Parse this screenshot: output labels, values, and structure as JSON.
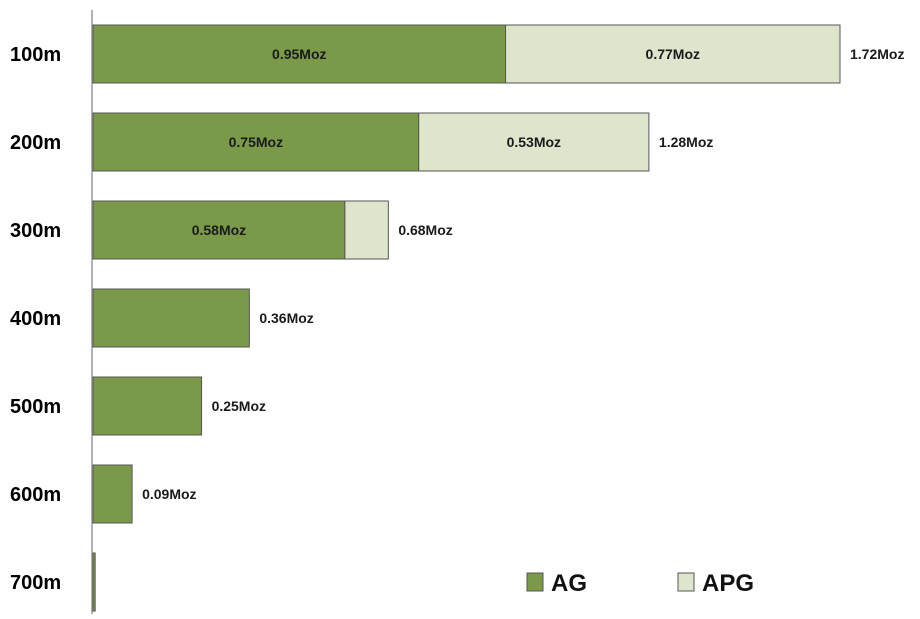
{
  "chart_data": {
    "type": "bar",
    "orientation": "horizontal",
    "stacked": true,
    "categories": [
      "100m",
      "200m",
      "300m",
      "400m",
      "500m",
      "600m",
      "700m"
    ],
    "series": [
      {
        "name": "AG",
        "color": "#7a9a4a",
        "values": [
          0.95,
          0.75,
          0.58,
          0.36,
          0.25,
          0.09,
          0.005
        ],
        "labels": [
          "0.95Moz",
          "0.75Moz",
          "0.58Moz",
          "",
          "",
          "",
          ""
        ]
      },
      {
        "name": "APG",
        "color": "#dde6cc",
        "values": [
          0.77,
          0.53,
          0.1,
          0,
          0,
          0,
          0
        ],
        "labels": [
          "0.77Moz",
          "0.53Moz",
          "",
          "",
          "",
          "",
          ""
        ]
      }
    ],
    "totals": [
      1.72,
      1.28,
      0.68,
      0.36,
      0.25,
      0.09,
      0.005
    ],
    "total_labels": [
      "1.72Moz",
      "1.28Moz",
      "0.68Moz",
      "0.36Moz",
      "0.25Moz",
      "0.09Moz",
      ""
    ],
    "xlim": [
      0,
      1.72
    ],
    "grid": false,
    "legend": {
      "position": "bottom-right",
      "entries": [
        "AG",
        "APG"
      ]
    },
    "title": "",
    "xlabel": "",
    "ylabel": ""
  }
}
